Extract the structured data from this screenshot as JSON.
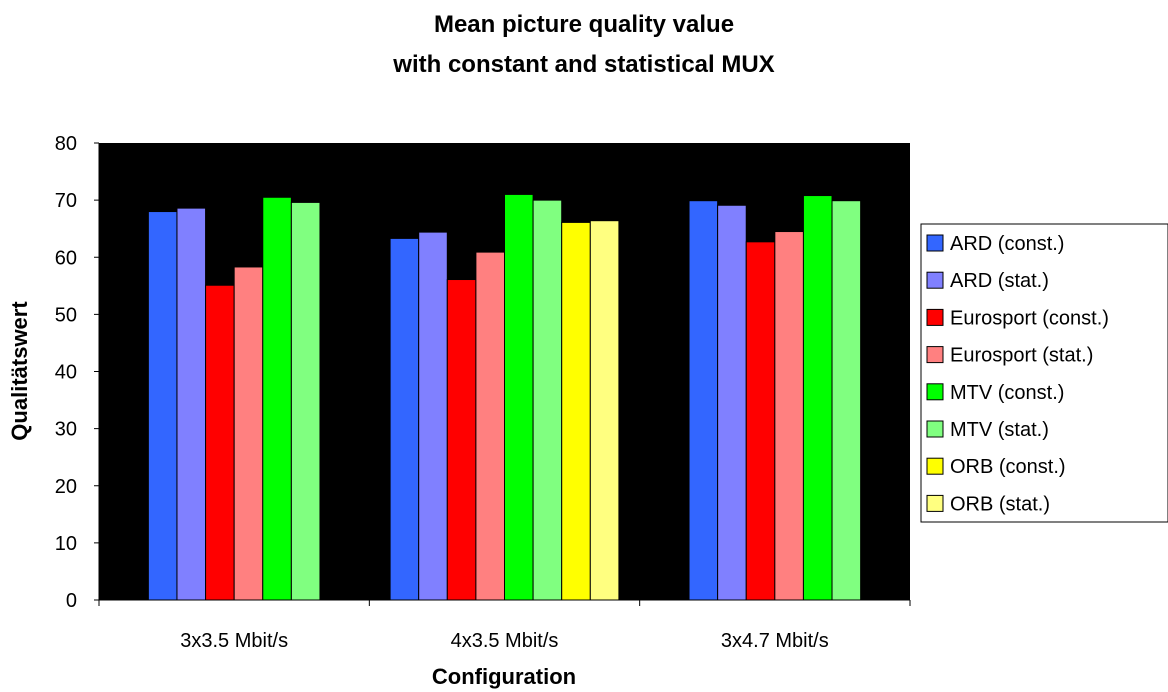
{
  "chart_data": {
    "type": "bar",
    "title_lines": [
      "Mean picture quality value",
      "with constant and statistical MUX"
    ],
    "xlabel": "Configuration",
    "ylabel": "Qualitätswert",
    "ylim": [
      0,
      80
    ],
    "yticks": [
      0,
      10,
      20,
      30,
      40,
      50,
      60,
      70,
      80
    ],
    "categories": [
      "3x3.5 Mbit/s",
      "4x3.5 Mbit/s",
      "3x4.7 Mbit/s"
    ],
    "plot_background": "#000000",
    "grid": false,
    "legend_position": "right",
    "series": [
      {
        "name": "ARD (const.)",
        "color": "#3366FF",
        "values": [
          68,
          63.3,
          69.9
        ]
      },
      {
        "name": "ARD (stat.)",
        "color": "#8080FF",
        "values": [
          68.6,
          64.4,
          69.1
        ]
      },
      {
        "name": "Eurosport (const.)",
        "color": "#FF0000",
        "values": [
          55.1,
          56.1,
          62.7
        ]
      },
      {
        "name": "Eurosport (stat.)",
        "color": "#FF8080",
        "values": [
          58.3,
          60.9,
          64.5
        ]
      },
      {
        "name": "MTV (const.)",
        "color": "#00FF00",
        "values": [
          70.5,
          71,
          70.8
        ]
      },
      {
        "name": "MTV (stat.)",
        "color": "#80FF80",
        "values": [
          69.6,
          70,
          69.9
        ]
      },
      {
        "name": "ORB (const.)",
        "color": "#FFFF00",
        "values": [
          null,
          66.1,
          null
        ]
      },
      {
        "name": "ORB (stat.)",
        "color": "#FFFF80",
        "values": [
          null,
          66.4,
          null
        ]
      }
    ]
  }
}
